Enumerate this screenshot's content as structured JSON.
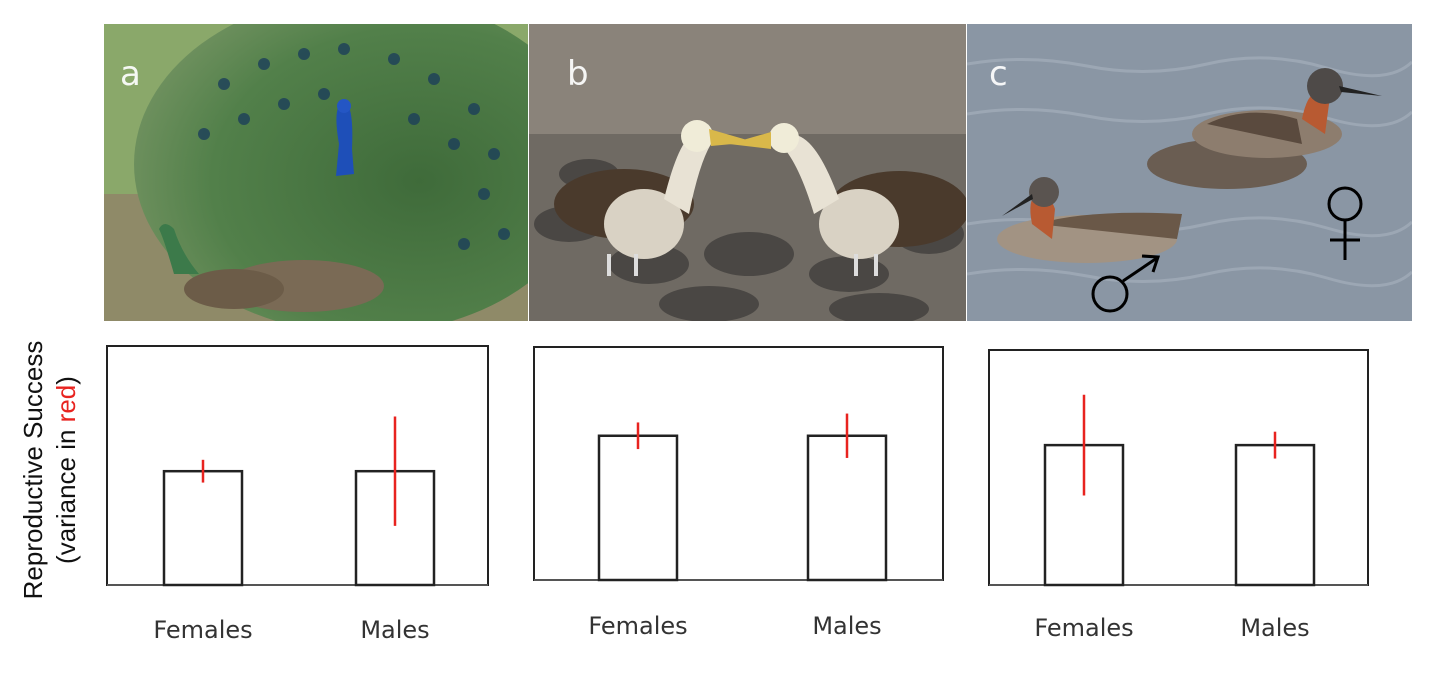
{
  "photos": [
    {
      "label": "a",
      "icon": "peacock-photo"
    },
    {
      "label": "b",
      "icon": "albatross-photo"
    },
    {
      "label": "c",
      "icon": "phalarope-photo",
      "symbols": [
        "male-symbol-icon",
        "female-symbol-icon"
      ]
    }
  ],
  "y_axis": {
    "line1": "Reproductive Success",
    "line2_pre": "(variance in ",
    "line2_red": "red",
    "line2_post": ")"
  },
  "colors": {
    "error_bar": "#e8231f",
    "bar_fill": "#ffffff",
    "bar_stroke": "#222222"
  },
  "chart_data": [
    {
      "type": "bar",
      "panel": "a",
      "categories": [
        "Females",
        "Males"
      ],
      "values": [
        1.0,
        1.0
      ],
      "error_bars": [
        0.1,
        0.48
      ],
      "ylim": [
        0,
        2.1
      ],
      "xlabel": "",
      "ylabel": "",
      "grid": false
    },
    {
      "type": "bar",
      "panel": "b",
      "categories": [
        "Females",
        "Males"
      ],
      "values": [
        1.3,
        1.3
      ],
      "error_bars": [
        0.12,
        0.2
      ],
      "ylim": [
        0,
        2.1
      ],
      "xlabel": "",
      "ylabel": "",
      "grid": false
    },
    {
      "type": "bar",
      "panel": "c",
      "categories": [
        "Females",
        "Males"
      ],
      "values": [
        1.25,
        1.25
      ],
      "error_bars": [
        0.45,
        0.12
      ],
      "ylim": [
        0,
        2.1
      ],
      "xlabel": "",
      "ylabel": "",
      "grid": false
    }
  ]
}
